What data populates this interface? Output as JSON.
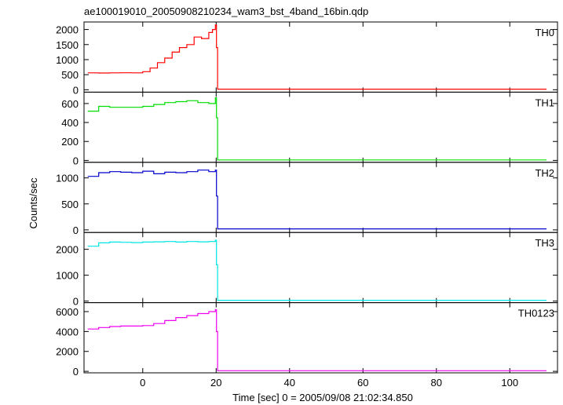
{
  "chart_data": {
    "type": "line",
    "title": "ae100019010_20050908210234_wam3_bst_4band_16bin.qdp",
    "xlabel": "Time [sec] 0 = 2005/09/08 21:02:34.850",
    "ylabel": "Counts/sec",
    "xlim": [
      -16,
      113
    ],
    "xticks": [
      0,
      20,
      40,
      60,
      80,
      100
    ],
    "xtick_labels": [
      "0",
      "20",
      "40",
      "60",
      "80",
      "100"
    ],
    "grid": false,
    "panels": [
      {
        "name": "TH0",
        "color": "#ff0000",
        "ylim": [
          -80,
          2250
        ],
        "yticks": [
          0,
          500,
          1000,
          1500,
          2000
        ],
        "ytick_labels": [
          "0",
          "500",
          "1000",
          "1500",
          "2000"
        ],
        "x": [
          -15,
          -12,
          -9,
          -6,
          -3,
          0,
          2,
          4,
          6,
          8,
          10,
          12,
          14,
          16,
          18,
          19,
          19.8,
          20.1,
          20.4,
          21,
          30,
          50,
          70,
          90,
          110
        ],
        "values": [
          560,
          555,
          560,
          565,
          560,
          600,
          720,
          900,
          1050,
          1250,
          1400,
          1500,
          1750,
          1700,
          1900,
          2000,
          2150,
          1400,
          20,
          20,
          20,
          20,
          20,
          20,
          20
        ]
      },
      {
        "name": "TH1",
        "color": "#00dd00",
        "ylim": [
          -20,
          720
        ],
        "yticks": [
          0,
          200,
          400,
          600
        ],
        "ytick_labels": [
          "0",
          "200",
          "400",
          "600"
        ],
        "x": [
          -15,
          -12,
          -9,
          -6,
          -3,
          0,
          3,
          6,
          9,
          12,
          15,
          18,
          19.8,
          20.1,
          20.4,
          21,
          30,
          50,
          70,
          90,
          110
        ],
        "values": [
          520,
          570,
          560,
          560,
          560,
          570,
          590,
          610,
          620,
          630,
          610,
          600,
          660,
          450,
          5,
          5,
          5,
          5,
          5,
          5,
          5
        ]
      },
      {
        "name": "TH2",
        "color": "#0000cc",
        "ylim": [
          -50,
          1300
        ],
        "yticks": [
          0,
          500,
          1000
        ],
        "ytick_labels": [
          "0",
          "500",
          "1000"
        ],
        "x": [
          -15,
          -12,
          -9,
          -6,
          -3,
          0,
          3,
          6,
          9,
          12,
          15,
          18,
          19.8,
          20.1,
          20.4,
          21,
          30,
          50,
          70,
          90,
          110
        ],
        "values": [
          1030,
          1100,
          1120,
          1110,
          1100,
          1130,
          1080,
          1110,
          1100,
          1120,
          1150,
          1120,
          1150,
          650,
          20,
          20,
          20,
          20,
          20,
          20,
          20
        ]
      },
      {
        "name": "TH3",
        "color": "#00e5e5",
        "ylim": [
          -60,
          2650
        ],
        "yticks": [
          0,
          1000,
          2000
        ],
        "ytick_labels": [
          "0",
          "1000",
          "2000"
        ],
        "x": [
          -15,
          -12,
          -9,
          -6,
          -3,
          0,
          3,
          6,
          9,
          12,
          15,
          18,
          19.8,
          20.1,
          20.4,
          21,
          30,
          50,
          70,
          90,
          110
        ],
        "values": [
          2120,
          2250,
          2280,
          2270,
          2260,
          2280,
          2290,
          2300,
          2280,
          2300,
          2290,
          2300,
          2350,
          1400,
          30,
          30,
          30,
          30,
          30,
          30,
          30
        ]
      },
      {
        "name": "TH0123",
        "color": "#ee00ee",
        "ylim": [
          -150,
          6900
        ],
        "yticks": [
          0,
          2000,
          4000,
          6000
        ],
        "ytick_labels": [
          "0",
          "2000",
          "4000",
          "6000"
        ],
        "x": [
          -15,
          -12,
          -9,
          -6,
          -3,
          0,
          3,
          6,
          9,
          12,
          15,
          18,
          19.8,
          20.1,
          20.4,
          21,
          30,
          50,
          70,
          90,
          110
        ],
        "values": [
          4250,
          4400,
          4500,
          4550,
          4550,
          4600,
          4800,
          5100,
          5400,
          5600,
          5800,
          6000,
          6200,
          4000,
          60,
          60,
          60,
          60,
          60,
          60,
          60
        ]
      }
    ]
  }
}
